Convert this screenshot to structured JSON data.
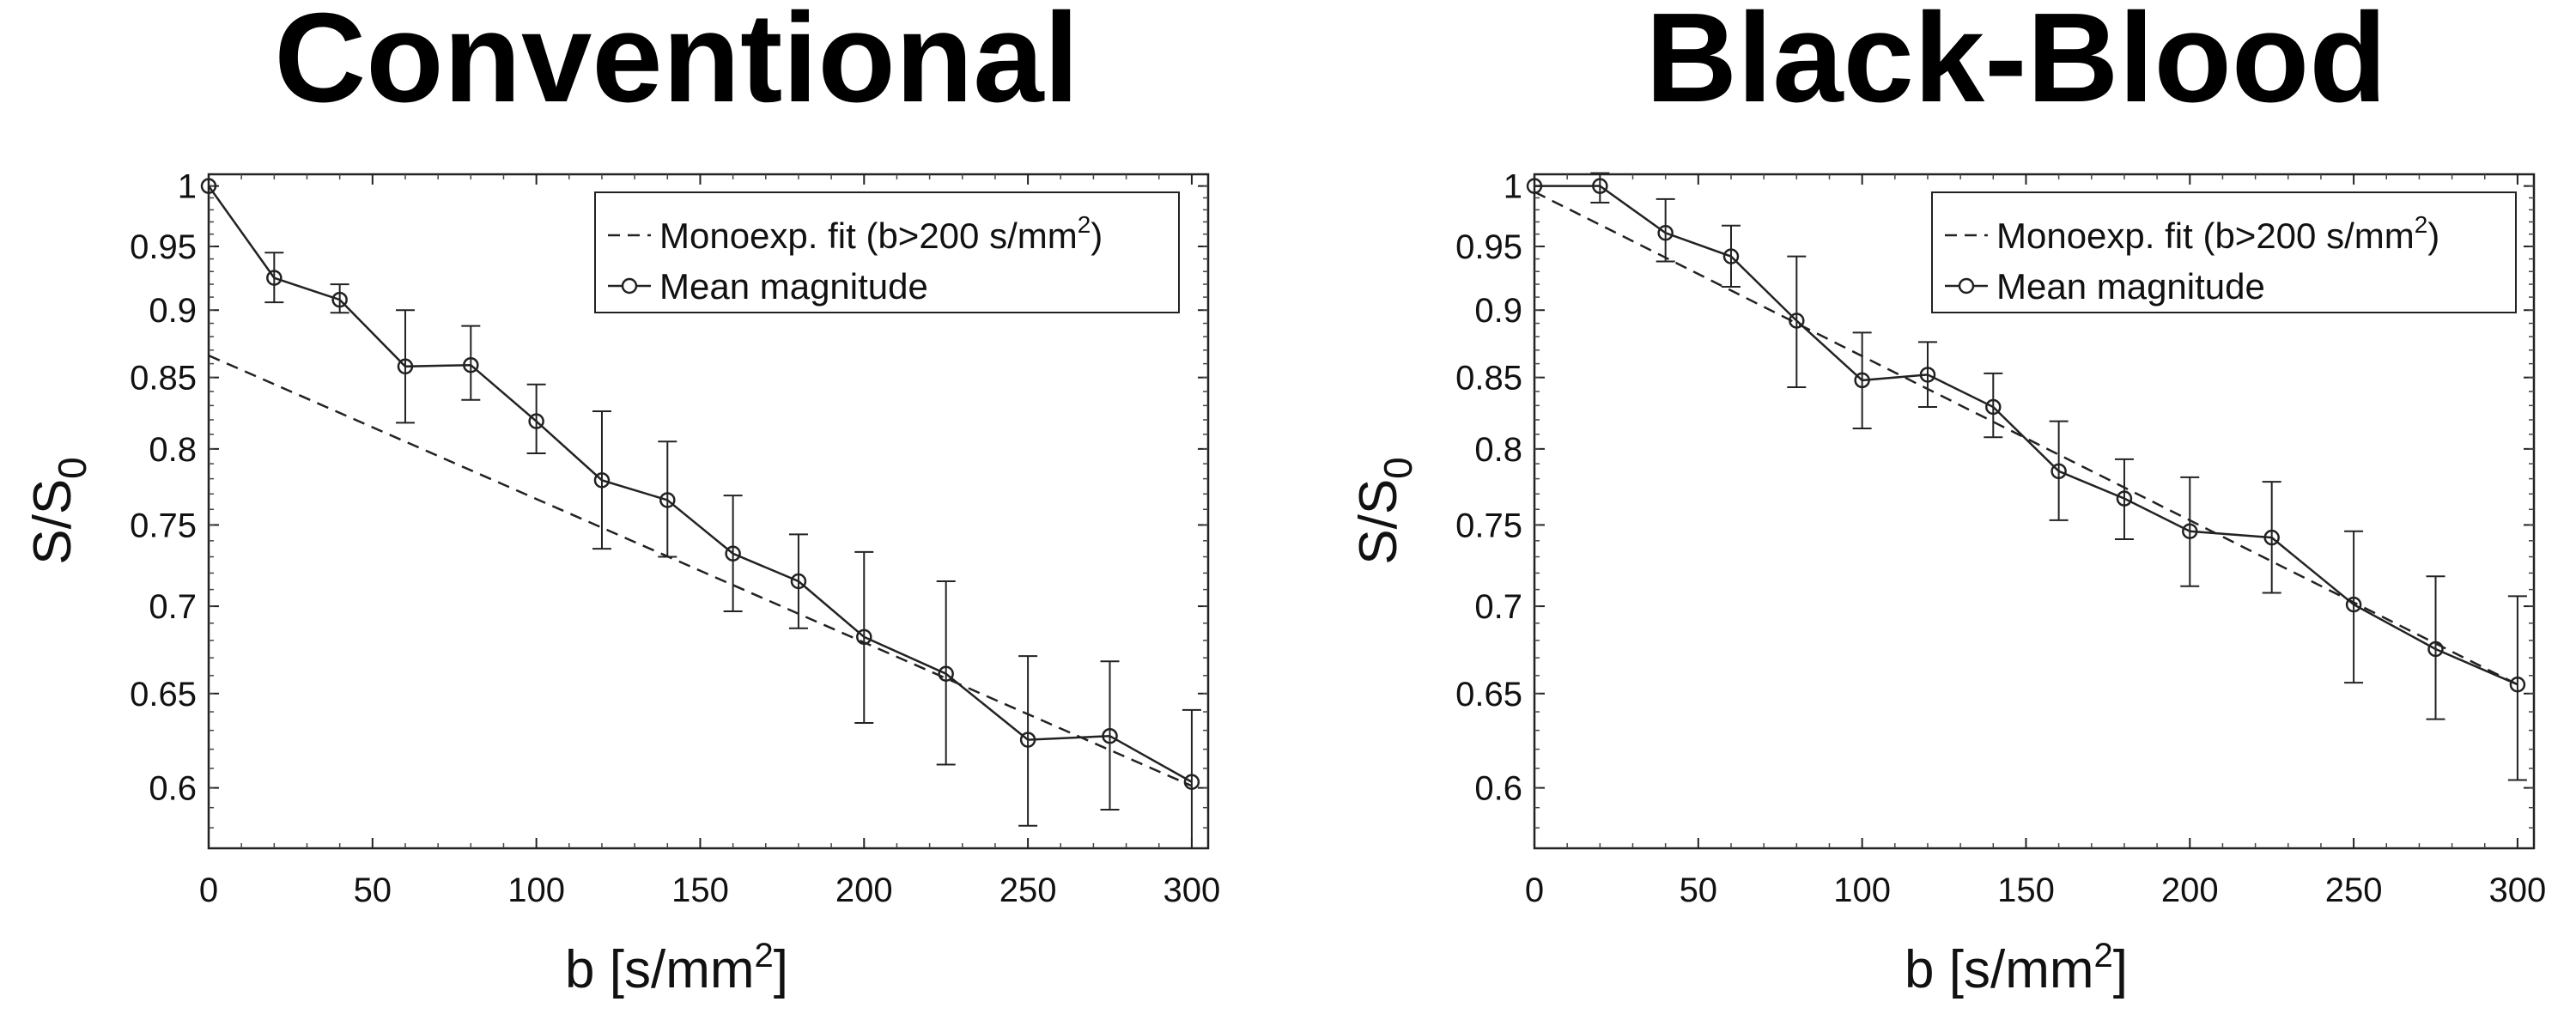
{
  "chart_data": [
    {
      "type": "line",
      "title": "Conventional",
      "xlabel": "b [s/mm",
      "xlabel_sup": "2",
      "xlabel_end": "]",
      "ylabel": "S/S",
      "ylabel_sub": "0",
      "xlim": [
        0,
        305
      ],
      "ylim": [
        0.57,
        1.01
      ],
      "y_scale": "log",
      "xticks": [
        0,
        50,
        100,
        150,
        200,
        250,
        300
      ],
      "yticks": [
        0.6,
        0.65,
        0.7,
        0.75,
        0.8,
        0.85,
        0.9,
        0.95,
        1
      ],
      "ytick_labels": [
        "0.6",
        "0.65",
        "0.7",
        "0.75",
        "0.8",
        "0.85",
        "0.9",
        "0.95",
        "1"
      ],
      "legend_position": "top-right",
      "series": [
        {
          "name": "Mean magnitude",
          "style": "solid-circle",
          "x": [
            0,
            20,
            40,
            60,
            80,
            100,
            120,
            140,
            160,
            180,
            200,
            225,
            250,
            275,
            300
          ],
          "y": [
            1.0,
            0.925,
            0.908,
            0.858,
            0.859,
            0.819,
            0.779,
            0.766,
            0.732,
            0.715,
            0.682,
            0.661,
            0.625,
            0.627,
            0.603
          ],
          "err_low": [
            1.0,
            0.906,
            0.898,
            0.818,
            0.834,
            0.797,
            0.735,
            0.73,
            0.697,
            0.687,
            0.634,
            0.612,
            0.581,
            0.589,
            0.565
          ],
          "err_high": [
            1.0,
            0.945,
            0.92,
            0.9,
            0.888,
            0.845,
            0.826,
            0.805,
            0.769,
            0.744,
            0.733,
            0.715,
            0.671,
            0.668,
            0.641
          ]
        },
        {
          "name": "Monoexp. fit (b>200 s/mm",
          "name_sup": "2",
          "name_end": ")",
          "style": "dashed",
          "x": [
            0,
            300
          ],
          "y": [
            0.866,
            0.601
          ]
        }
      ]
    },
    {
      "type": "line",
      "title": "Black-Blood",
      "xlabel": "b [s/mm",
      "xlabel_sup": "2",
      "xlabel_end": "]",
      "ylabel": "S/S",
      "ylabel_sub": "0",
      "xlim": [
        0,
        305
      ],
      "ylim": [
        0.57,
        1.01
      ],
      "y_scale": "log",
      "xticks": [
        0,
        50,
        100,
        150,
        200,
        250,
        300
      ],
      "yticks": [
        0.6,
        0.65,
        0.7,
        0.75,
        0.8,
        0.85,
        0.9,
        0.95,
        1
      ],
      "ytick_labels": [
        "0.6",
        "0.65",
        "0.7",
        "0.75",
        "0.8",
        "0.85",
        "0.9",
        "0.95",
        "1"
      ],
      "legend_position": "top-right",
      "series": [
        {
          "name": "Mean magnitude",
          "style": "solid-circle",
          "x": [
            0,
            20,
            40,
            60,
            80,
            100,
            120,
            140,
            160,
            180,
            200,
            225,
            250,
            275,
            300
          ],
          "y": [
            1.0,
            1.0,
            0.961,
            0.942,
            0.892,
            0.848,
            0.852,
            0.829,
            0.785,
            0.767,
            0.746,
            0.742,
            0.701,
            0.675,
            0.655
          ],
          "err_low": [
            1.0,
            0.986,
            0.938,
            0.918,
            0.843,
            0.814,
            0.829,
            0.808,
            0.753,
            0.741,
            0.712,
            0.708,
            0.656,
            0.636,
            0.604
          ],
          "err_high": [
            1.0,
            1.011,
            0.989,
            0.967,
            0.942,
            0.883,
            0.876,
            0.853,
            0.819,
            0.793,
            0.781,
            0.778,
            0.746,
            0.718,
            0.706
          ]
        },
        {
          "name": "Monoexp. fit (b>200 s/mm",
          "name_sup": "2",
          "name_end": ")",
          "style": "dashed",
          "x": [
            0,
            300
          ],
          "y": [
            0.995,
            0.655
          ]
        }
      ]
    }
  ]
}
